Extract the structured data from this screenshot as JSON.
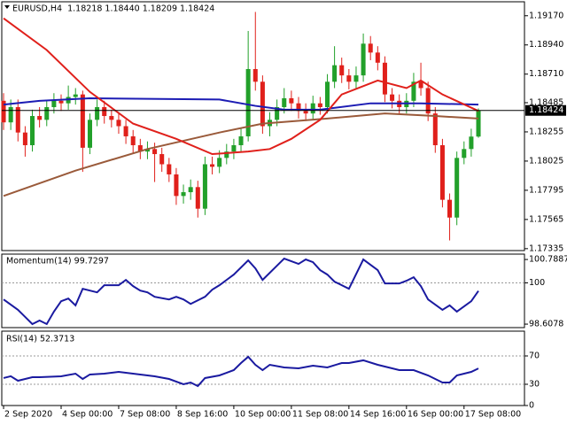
{
  "chart_data": [
    {
      "type": "candlestick",
      "title": "EURUSD,H4  1.18218 1.18440 1.18209 1.18424",
      "up_color": "#22a02a",
      "down_color": "#e0201b",
      "open": [
        1.185,
        1.1833,
        1.1845,
        1.1825,
        1.1815,
        1.1838,
        1.1835,
        1.1845,
        1.185,
        1.1848,
        1.1853,
        1.1855,
        1.1813,
        1.1835,
        1.1845,
        1.1838,
        1.1835,
        1.183,
        1.1822,
        1.1815,
        1.181,
        1.1812,
        1.1808,
        1.18,
        1.1792,
        1.1775,
        1.1778,
        1.1782,
        1.1765,
        1.18,
        1.1798,
        1.1805,
        1.181,
        1.1815,
        1.1822,
        1.1875,
        1.1865,
        1.183,
        1.1835,
        1.1845,
        1.1852,
        1.1848,
        1.1842,
        1.184,
        1.1848,
        1.1845,
        1.1865,
        1.1878,
        1.187,
        1.1865,
        1.187,
        1.1895,
        1.1888,
        1.188,
        1.1855,
        1.185,
        1.1845,
        1.185,
        1.1865,
        1.186,
        1.184,
        1.1815,
        1.1772,
        1.1758,
        1.1805,
        1.1812,
        1.18218
      ],
      "high": [
        1.1856,
        1.1851,
        1.1851,
        1.183,
        1.1843,
        1.1845,
        1.185,
        1.1856,
        1.1855,
        1.1862,
        1.186,
        1.1858,
        1.184,
        1.1851,
        1.185,
        1.1843,
        1.184,
        1.1835,
        1.1827,
        1.182,
        1.1818,
        1.1817,
        1.1813,
        1.1805,
        1.1797,
        1.1784,
        1.1788,
        1.1787,
        1.1806,
        1.1806,
        1.1811,
        1.1816,
        1.182,
        1.1828,
        1.1905,
        1.192,
        1.187,
        1.1841,
        1.1851,
        1.186,
        1.1858,
        1.1853,
        1.1848,
        1.1854,
        1.1853,
        1.1871,
        1.1893,
        1.1884,
        1.1875,
        1.1877,
        1.1903,
        1.1901,
        1.1893,
        1.1885,
        1.186,
        1.1855,
        1.1856,
        1.1872,
        1.188,
        1.1865,
        1.1845,
        1.182,
        1.1777,
        1.181,
        1.1818,
        1.1828,
        1.1844
      ],
      "low": [
        1.1827,
        1.1827,
        1.1818,
        1.1806,
        1.181,
        1.1829,
        1.183,
        1.184,
        1.1842,
        1.1843,
        1.1847,
        1.1794,
        1.1808,
        1.183,
        1.1832,
        1.1829,
        1.1824,
        1.1816,
        1.1809,
        1.1804,
        1.1804,
        1.1786,
        1.1794,
        1.1786,
        1.1768,
        1.1769,
        1.1772,
        1.1758,
        1.176,
        1.1792,
        1.1793,
        1.18,
        1.1804,
        1.181,
        1.1818,
        1.1858,
        1.1824,
        1.1822,
        1.183,
        1.184,
        1.1842,
        1.1836,
        1.1834,
        1.1835,
        1.1839,
        1.184,
        1.186,
        1.1864,
        1.1859,
        1.186,
        1.1865,
        1.1882,
        1.1874,
        1.1849,
        1.1844,
        1.1839,
        1.184,
        1.1845,
        1.1854,
        1.1834,
        1.1809,
        1.1766,
        1.174,
        1.1752,
        1.18,
        1.1806,
        1.18209
      ],
      "close": [
        1.1833,
        1.1845,
        1.1825,
        1.1815,
        1.1838,
        1.1835,
        1.1845,
        1.185,
        1.1848,
        1.1853,
        1.1855,
        1.1813,
        1.1835,
        1.1845,
        1.1838,
        1.1835,
        1.183,
        1.1822,
        1.1815,
        1.181,
        1.1812,
        1.1808,
        1.18,
        1.1792,
        1.1775,
        1.1778,
        1.1782,
        1.1765,
        1.18,
        1.1798,
        1.1805,
        1.181,
        1.1815,
        1.1822,
        1.1875,
        1.1865,
        1.183,
        1.1835,
        1.1845,
        1.1852,
        1.1848,
        1.1842,
        1.184,
        1.1848,
        1.1845,
        1.1865,
        1.1878,
        1.187,
        1.1865,
        1.187,
        1.1895,
        1.1888,
        1.188,
        1.1855,
        1.185,
        1.1845,
        1.185,
        1.1865,
        1.186,
        1.184,
        1.1815,
        1.1772,
        1.1758,
        1.1805,
        1.1812,
        1.18218,
        1.18424
      ],
      "series": [
        {
          "color": "#1c1cb4",
          "x": [
            0,
            5,
            12,
            30,
            35,
            39,
            44,
            51,
            58,
            66
          ],
          "values": [
            1.1847,
            1.185,
            1.1852,
            1.1851,
            1.1846,
            1.1843,
            1.1843,
            1.1848,
            1.1848,
            1.1847
          ]
        },
        {
          "color": "#9a5a3a",
          "x": [
            0,
            10,
            20,
            30,
            36,
            45,
            53,
            60,
            66
          ],
          "values": [
            1.1775,
            1.1795,
            1.1812,
            1.1825,
            1.1832,
            1.1836,
            1.184,
            1.1838,
            1.1836
          ]
        },
        {
          "color": "#e0201b",
          "x": [
            0,
            6,
            12,
            18,
            24,
            29,
            34,
            37,
            40,
            44,
            47,
            52,
            56,
            58,
            61,
            66
          ],
          "values": [
            1.1915,
            1.189,
            1.1857,
            1.1832,
            1.182,
            1.1808,
            1.181,
            1.1812,
            1.182,
            1.1835,
            1.1855,
            1.1866,
            1.186,
            1.1866,
            1.1855,
            1.1842
          ]
        }
      ],
      "last_price": 1.18424,
      "xlim": [
        -0.25,
        72.4
      ],
      "ylim": [
        1.1732,
        1.1928
      ],
      "yticks": [
        {
          "value": 1.1917,
          "label": "1.19170"
        },
        {
          "value": 1.1894,
          "label": "1.18940"
        },
        {
          "value": 1.1871,
          "label": "1.18710"
        },
        {
          "value": 1.18485,
          "label": "1.18485"
        },
        {
          "value": 1.18255,
          "label": "1.18255"
        },
        {
          "value": 1.18025,
          "label": "1.18025"
        },
        {
          "value": 1.17795,
          "label": "1.17795"
        },
        {
          "value": 1.17565,
          "label": "1.17565"
        },
        {
          "value": 1.17335,
          "label": "1.17335"
        }
      ],
      "xticks": [
        {
          "value": 0,
          "label": "2 Sep 2020"
        },
        {
          "value": 8,
          "label": "4 Sep 00:00"
        },
        {
          "value": 16,
          "label": "7 Sep 08:00"
        },
        {
          "value": 24,
          "label": "8 Sep 16:00"
        },
        {
          "value": 32,
          "label": "10 Sep 00:00"
        },
        {
          "value": 40,
          "label": "11 Sep 08:00"
        },
        {
          "value": 48,
          "label": "14 Sep 16:00"
        },
        {
          "value": 56,
          "label": "16 Sep 00:00"
        },
        {
          "value": 64,
          "label": "17 Sep 08:00"
        }
      ]
    },
    {
      "type": "line",
      "title": "Momentum(14) 99.7297",
      "series": [
        {
          "color": "#1a1aa0",
          "x": [
            0,
            2,
            3,
            4,
            5,
            6,
            7,
            8,
            9,
            10,
            11,
            13,
            14,
            16,
            17,
            18,
            19,
            20,
            21,
            23,
            24,
            25,
            26,
            28,
            29,
            30,
            31,
            32,
            34,
            35,
            36,
            38,
            39,
            41,
            42,
            43,
            44,
            45,
            46,
            48,
            50,
            52,
            53,
            55,
            56,
            57,
            58,
            59,
            61,
            62,
            63,
            65,
            66
          ],
          "values": [
            99.44,
            99.09,
            98.85,
            98.61,
            98.73,
            98.61,
            99.03,
            99.38,
            99.47,
            99.24,
            99.8,
            99.68,
            99.92,
            99.92,
            100.1,
            99.89,
            99.74,
            99.68,
            99.53,
            99.44,
            99.53,
            99.44,
            99.29,
            99.53,
            99.77,
            99.92,
            100.1,
            100.28,
            100.76,
            100.49,
            100.1,
            100.58,
            100.82,
            100.64,
            100.79,
            100.7,
            100.43,
            100.28,
            100.04,
            99.8,
            100.79,
            100.43,
            99.98,
            99.98,
            100.07,
            100.19,
            99.89,
            99.44,
            99.09,
            99.24,
            99.03,
            99.38,
            99.7297
          ]
        }
      ],
      "xlim": [
        -0.25,
        72.4
      ],
      "ylim": [
        98.49,
        100.97
      ],
      "yticks": [
        100.7887,
        100,
        98.6078
      ],
      "levels": [
        100
      ]
    },
    {
      "type": "line",
      "title": "RSI(14) 52.3713",
      "series": [
        {
          "color": "#1a1aa0",
          "x": [
            0,
            1,
            2,
            4,
            5,
            8,
            10,
            11,
            12,
            14,
            16,
            19,
            21,
            23,
            25,
            26,
            27,
            28,
            30,
            32,
            33,
            34,
            35,
            36,
            37,
            39,
            41,
            43,
            45,
            47,
            48,
            50,
            52,
            53,
            55,
            57,
            59,
            61,
            62,
            63,
            65,
            66
          ],
          "values": [
            38.8,
            41.3,
            35,
            40,
            40,
            41.3,
            45,
            37.5,
            43.8,
            45,
            47.5,
            43.8,
            41.3,
            37.5,
            30,
            32.5,
            27.5,
            38.8,
            42.5,
            50,
            60,
            68.8,
            57.5,
            50,
            57.5,
            53.8,
            52.5,
            56.3,
            53.8,
            60,
            60,
            63.8,
            57.5,
            55,
            50,
            50,
            42.5,
            32.5,
            32.5,
            42.5,
            47.5,
            52.3713
          ]
        }
      ],
      "xlim": [
        -0.25,
        72.4
      ],
      "ylim": [
        0,
        105
      ],
      "yticks": [
        70,
        30,
        0
      ],
      "levels": [
        70,
        30
      ]
    }
  ]
}
